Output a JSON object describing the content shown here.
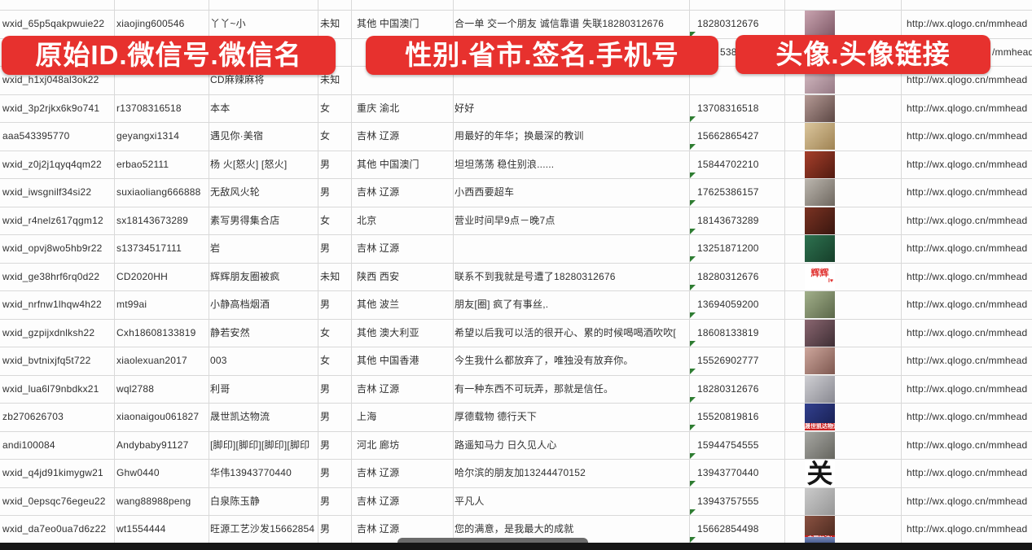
{
  "colors": {
    "banner_red": "#e7312e",
    "banner_text": "#ffffff",
    "grid_line": "#d9d9d9",
    "cell_text": "#303030",
    "indicator_green": "#2e7d32",
    "bottom_bar": "#161616",
    "scrollbar_thumb": "#6b6b6b"
  },
  "banners": [
    {
      "label": "原始ID.微信号.微信名"
    },
    {
      "label": "性别.省市.签名.手机号"
    },
    {
      "label": "头像.头像链接"
    }
  ],
  "table": {
    "rows": [
      {
        "wxid": "wxid_65p5qakpwuie22",
        "wechat_id": "xiaojing600546",
        "nickname": "丫丫~小",
        "gender": "未知",
        "region": "其他 中国澳门",
        "signature": "合一单 交一个朋友 诚信靠谱 失联18280312676",
        "phone": "18280312676",
        "link": "http://wx.qlogo.cn/mmhead",
        "avatar": {
          "desc": "woman-photo",
          "c1": "#c9a4b0",
          "c2": "#7d5765"
        }
      },
      {
        "wxid": "",
        "wechat_id": "",
        "nickname": "",
        "gender": "",
        "region": "",
        "signature": "",
        "phone": "5386",
        "phone_partial": true,
        "link": "/mmhead",
        "link_partial": true,
        "avatar": null
      },
      {
        "wxid": "wxid_h1xj048al3ok22",
        "wechat_id": "",
        "nickname": "CD麻辣麻将",
        "gender": "未知",
        "region": "",
        "signature": "",
        "phone": "",
        "link": "http://wx.qlogo.cn/mmhead",
        "avatar": {
          "desc": "photo",
          "c1": "#d6bcc4",
          "c2": "#967a85"
        }
      },
      {
        "wxid": "wxid_3p2rjkx6k9o741",
        "wechat_id": "r13708316518",
        "nickname": "本本",
        "gender": "女",
        "region": "重庆 渝北",
        "signature": "好好",
        "phone": "13708316518",
        "link": "http://wx.qlogo.cn/mmhead",
        "avatar": {
          "desc": "woman-long-hair-photo",
          "c1": "#b59a95",
          "c2": "#5c4744"
        }
      },
      {
        "wxid": "aaa543395770",
        "wechat_id": "geyangxi1314",
        "nickname": "遇见你·美宿",
        "gender": "女",
        "region": "吉林 辽源",
        "signature": "用最好的年华；换最深的教训",
        "phone": "15662865427",
        "link": "http://wx.qlogo.cn/mmhead",
        "avatar": {
          "desc": "beige-photo",
          "c1": "#dbc69d",
          "c2": "#9f8353"
        }
      },
      {
        "wxid": "wxid_z0j2j1qyq4qm22",
        "wechat_id": "erbao52111",
        "nickname": "杨 火[怒火] [怒火]",
        "gender": "男",
        "region": "其他 中国澳门",
        "signature": "坦坦荡荡 稳住别浪......",
        "phone": "15844702210",
        "link": "http://wx.qlogo.cn/mmhead",
        "avatar": {
          "desc": "hotpot-food-photo",
          "c1": "#a63f2b",
          "c2": "#521b11"
        }
      },
      {
        "wxid": "wxid_iwsgnilf34si22",
        "wechat_id": "suxiaoliang666888",
        "nickname": "无敌风火轮",
        "gender": "男",
        "region": "吉林 辽源",
        "signature": "小西西要超车",
        "phone": "17625386157",
        "link": "http://wx.qlogo.cn/mmhead",
        "avatar": {
          "desc": "man-in-car-photo",
          "c1": "#bcb7af",
          "c2": "#6e675f"
        }
      },
      {
        "wxid": "wxid_r4nelz617qgm12",
        "wechat_id": "sx18143673289",
        "nickname": "素写男得集合店",
        "gender": "女",
        "region": "北京",
        "signature": "营业时间早9点－晚7点",
        "phone": "18143673289",
        "link": "http://wx.qlogo.cn/mmhead",
        "avatar": {
          "desc": "storefront-photo",
          "c1": "#7b3323",
          "c2": "#39160f"
        }
      },
      {
        "wxid": "wxid_opvj8wo5hb9r22",
        "wechat_id": "s13734517111",
        "nickname": "岩",
        "gender": "男",
        "region": "吉林 辽源",
        "signature": "",
        "phone": "13251871200",
        "link": "http://wx.qlogo.cn/mmhead",
        "avatar": {
          "desc": "green-sign-photo",
          "c1": "#2e7250",
          "c2": "#163f2a"
        }
      },
      {
        "wxid": "wxid_ge38hrf6rq0d22",
        "wechat_id": "CD2020HH",
        "nickname": "辉辉朋友圈被疯",
        "gender": "未知",
        "region": "陕西 西安",
        "signature": "联系不到我就是号遭了18280312676",
        "phone": "18280312676",
        "link": "http://wx.qlogo.cn/mmhead",
        "avatar": {
          "desc": "white-red-text-logo",
          "bg": "#ffffff",
          "text": "辉辉",
          "color": "#e0302e",
          "size": 11,
          "sub": "I♥"
        }
      },
      {
        "wxid": "wxid_nrfnw1lhqw4h22",
        "wechat_id": "mt99ai",
        "nickname": "小静高档烟酒",
        "gender": "男",
        "region": "其他 波兰",
        "signature": "朋友[圈] 疯了有事丝,.",
        "phone": "13694059200",
        "link": "http://wx.qlogo.cn/mmhead",
        "avatar": {
          "desc": "woman-sunglasses-photo",
          "c1": "#a2b08b",
          "c2": "#5b6749"
        }
      },
      {
        "wxid": "wxid_gzpijxdnlksh22",
        "wechat_id": "Cxh18608133819",
        "nickname": "静若安然",
        "gender": "女",
        "region": "其他 澳大利亚",
        "signature": "希望以后我可以活的很开心、累的时候喝喝酒吹吹[",
        "phone": "18608133819",
        "link": "http://wx.qlogo.cn/mmhead",
        "avatar": {
          "desc": "woman-dark-photo",
          "c1": "#8a6670",
          "c2": "#3e2e34"
        }
      },
      {
        "wxid": "wxid_bvtnixjfq5t722",
        "wechat_id": "xiaolexuan2017",
        "nickname": "003",
        "gender": "女",
        "region": "其他 中国香港",
        "signature": "今生我什么都放弃了，唯独没有放弃你。",
        "phone": "15526902777",
        "link": "http://wx.qlogo.cn/mmhead",
        "avatar": {
          "desc": "selfie-photo",
          "c1": "#cea79d",
          "c2": "#7d574f"
        }
      },
      {
        "wxid": "wxid_lua6l79nbdkx21",
        "wechat_id": "wql2788",
        "nickname": "利哥",
        "gender": "男",
        "region": "吉林 辽源",
        "signature": "有一种东西不可玩弄，那就是信任。",
        "phone": "18280312676",
        "link": "http://wx.qlogo.cn/mmhead",
        "avatar": {
          "desc": "white-cap-photo",
          "c1": "#cfcfd3",
          "c2": "#898991"
        }
      },
      {
        "wxid": "zb270626703",
        "wechat_id": "xiaonaigou061827",
        "nickname": "晟世凯达物流",
        "gender": "男",
        "region": "上海",
        "signature": "厚德载物 德行天下",
        "phone": "15520819816",
        "link": "http://wx.qlogo.cn/mmhead",
        "avatar": {
          "desc": "blue-qr-logo",
          "c1": "#32408e",
          "c2": "#161d4e",
          "strip": "#cc2020",
          "strip_text": "晟世凯达物流"
        }
      },
      {
        "wxid": "andi100084",
        "wechat_id": "Andybaby91127",
        "nickname": "[脚印][脚印][脚印][脚印",
        "gender": "男",
        "region": "河北 廊坊",
        "signature": "路遥知马力 日久见人心",
        "phone": "15944754555",
        "link": "http://wx.qlogo.cn/mmhead",
        "avatar": {
          "desc": "gray-figure-photo",
          "c1": "#a7a7a3",
          "c2": "#65655e"
        }
      },
      {
        "wxid": "wxid_q4jd91kimygw21",
        "wechat_id": "Ghw0440",
        "nickname": "华伟13943770440",
        "gender": "男",
        "region": "吉林 辽源",
        "signature": "哈尔滨的朋友加13244470152",
        "phone": "13943770440",
        "link": "http://wx.qlogo.cn/mmhead",
        "avatar": {
          "desc": "calligraphy-guan",
          "bg": "#ffffff",
          "text": "关",
          "color": "#151515",
          "size": 32,
          "overflow": true
        }
      },
      {
        "wxid": "wxid_0epsqc76egeu22",
        "wechat_id": "wang88988peng",
        "nickname": "白泉陈玉静",
        "gender": "男",
        "region": "吉林 辽源",
        "signature": "平凡人",
        "phone": "13943757555",
        "link": "http://wx.qlogo.cn/mmhead",
        "avatar": {
          "desc": "light-gray-photo",
          "c1": "#cbcbcb",
          "c2": "#969696"
        }
      },
      {
        "wxid": "wxid_da7eo0ua7d6z22",
        "wechat_id": "wt1554444",
        "nickname": "旺源工艺沙发15662854",
        "gender": "男",
        "region": "吉林 辽源",
        "signature": "您的满意，是我最大的成就",
        "phone": "15662854498",
        "link": "http://wx.qlogo.cn/mmhead",
        "avatar": {
          "desc": "photo-red-banner",
          "c1": "#8a5242",
          "c2": "#46261c",
          "strip": "#cc1f1f",
          "strip_text": "中国加油!"
        }
      }
    ]
  }
}
